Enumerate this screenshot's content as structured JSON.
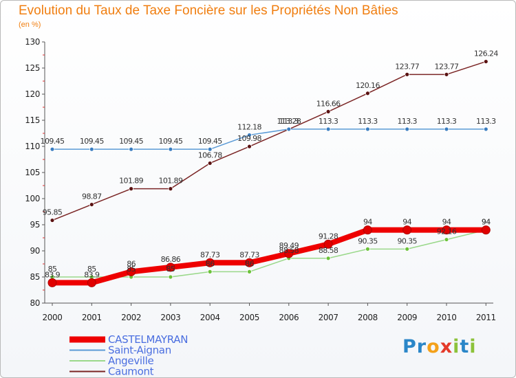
{
  "chart_data": {
    "type": "line",
    "title": "Evolution du Taux de Taxe Foncière sur les Propriétés Non Bâties",
    "ylabel": "(en %)",
    "xlabel": "",
    "x": [
      "2000",
      "2001",
      "2002",
      "2003",
      "2004",
      "2005",
      "2006",
      "2007",
      "2008",
      "2009",
      "2010",
      "2011"
    ],
    "ylim": [
      80,
      130
    ],
    "yticks": [
      "80",
      "85",
      "90",
      "95",
      "100",
      "105",
      "110",
      "115",
      "120",
      "125",
      "130"
    ],
    "grid": false,
    "legend_position": "bottom-left",
    "series": [
      {
        "name": "Caumont",
        "color": "#7a2424",
        "marker_color": "#5a1212",
        "values": [
          95.85,
          98.87,
          101.89,
          101.89,
          106.78,
          109.98,
          113.28,
          116.66,
          120.16,
          123.77,
          123.77,
          126.24
        ],
        "labels": [
          "95.85",
          "98.87",
          "101.89",
          "101.89",
          "106.78",
          "109.98",
          "113.28",
          "116.66",
          "120.16",
          "123.77",
          "123.77",
          "126.24"
        ]
      },
      {
        "name": "Saint-Aignan",
        "color": "#5a9ad6",
        "marker_color": "#3a7dc0",
        "values": [
          109.45,
          109.45,
          109.45,
          109.45,
          109.45,
          112.18,
          113.3,
          113.3,
          113.3,
          113.3,
          113.3,
          113.3
        ],
        "labels": [
          "109.45",
          "109.45",
          "109.45",
          "109.45",
          "109.45",
          "112.18",
          "113.3",
          "113.3",
          "113.3",
          "113.3",
          "113.3",
          "113.3"
        ]
      },
      {
        "name": "Angeville",
        "color": "#9ad88a",
        "marker_color": "#6cc23a",
        "values": [
          85,
          85,
          85,
          85,
          86,
          86,
          88.58,
          88.58,
          90.35,
          90.35,
          92.16,
          94
        ],
        "labels": [
          "85",
          "85",
          "85",
          "85",
          "86",
          "86",
          "88.58",
          "88.58",
          "90.35",
          "90.35",
          "92.16",
          "94"
        ]
      },
      {
        "name": "CASTELMAYRAN",
        "color": "#ee0000",
        "marker_color": "#e00000",
        "values": [
          83.9,
          83.9,
          86,
          86.86,
          87.73,
          87.73,
          89.49,
          91.28,
          94,
          94,
          94,
          94
        ],
        "labels": [
          "83.9",
          "83.9",
          "86",
          "86.86",
          "87.73",
          "87.73",
          "89.49",
          "91.28",
          "94",
          "94",
          "94",
          "94"
        ]
      }
    ],
    "legend_order": [
      "CASTELMAYRAN",
      "Saint-Aignan",
      "Angeville",
      "Caumont"
    ]
  },
  "brand": {
    "letters": [
      {
        "ch": "P",
        "color": "#2a86c8"
      },
      {
        "ch": "r",
        "color": "#2a86c8"
      },
      {
        "ch": "o",
        "color": "#f4a11a"
      },
      {
        "ch": "x",
        "color": "#e43a2a"
      },
      {
        "ch": "i",
        "color": "#8cc23a"
      },
      {
        "ch": "t",
        "color": "#2a86c8"
      },
      {
        "ch": "i",
        "color": "#8cc23a"
      }
    ]
  }
}
